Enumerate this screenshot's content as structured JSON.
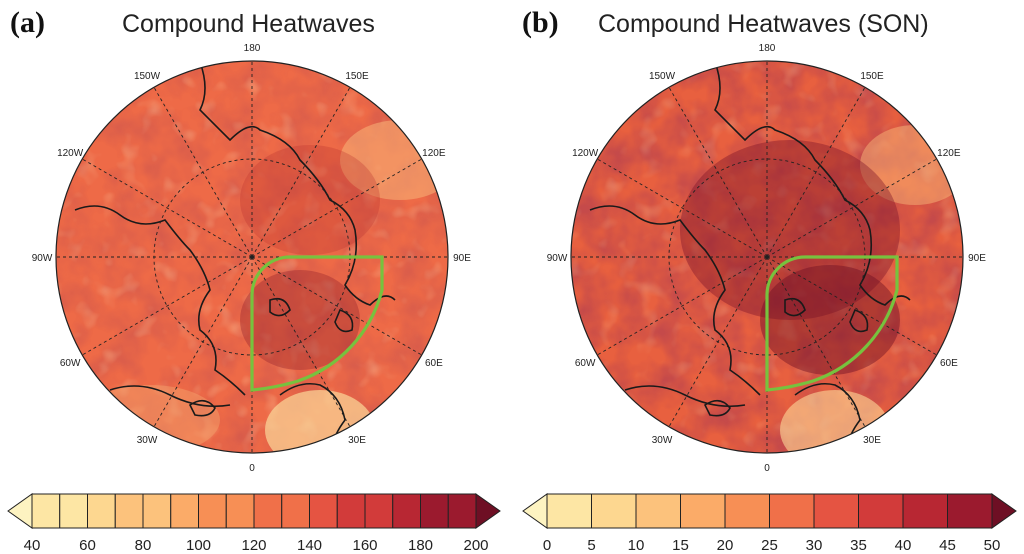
{
  "panels": [
    {
      "label": "(a)",
      "title": "Compound Heatwaves",
      "lon_labels": [
        "180",
        "150E",
        "120E",
        "90E",
        "60E",
        "30E",
        "0",
        "30W",
        "60W",
        "90W",
        "120W",
        "150W"
      ],
      "colorbar_ticks": [
        "40",
        "60",
        "80",
        "100",
        "120",
        "140",
        "160",
        "180",
        "200"
      ]
    },
    {
      "label": "(b)",
      "title": "Compound Heatwaves (SON)",
      "lon_labels": [
        "180",
        "150E",
        "120E",
        "90E",
        "60E",
        "30E",
        "0",
        "30W",
        "60W",
        "90W",
        "120W",
        "150W"
      ],
      "colorbar_ticks": [
        "0",
        "5",
        "10",
        "15",
        "20",
        "25",
        "30",
        "35",
        "40",
        "45",
        "50"
      ]
    }
  ],
  "colors": {
    "palette": [
      "#fdf3c1",
      "#fde6a4",
      "#fdd790",
      "#fcc27c",
      "#fbab68",
      "#f78f55",
      "#f07049",
      "#e55442",
      "#d23b3a",
      "#b82733",
      "#9b1a2e",
      "#7a1128"
    ],
    "region_outline": "#77c23e",
    "coastline": "#1a1a1a"
  }
}
